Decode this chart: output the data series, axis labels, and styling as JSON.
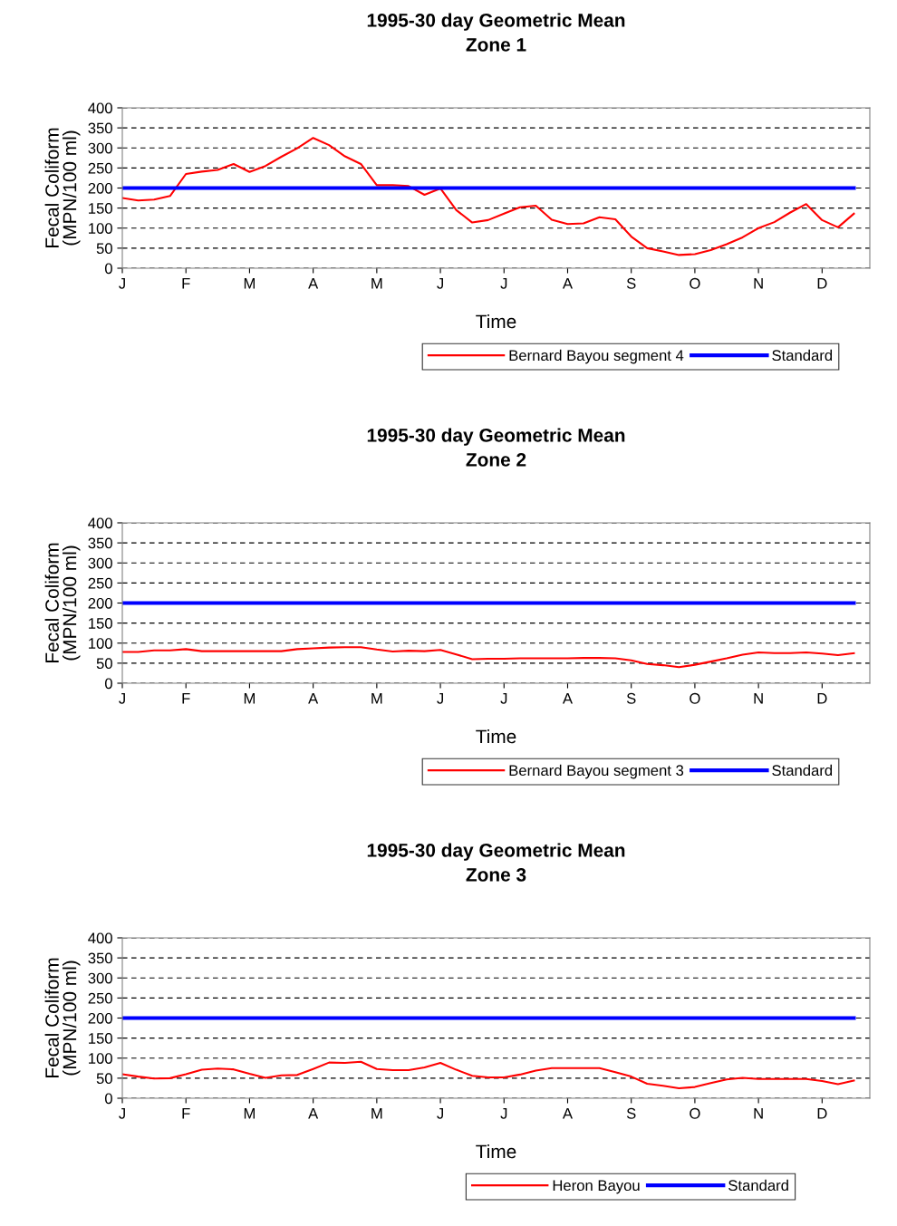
{
  "chart_data": [
    {
      "type": "line",
      "title": "1995-30 day Geometric Mean\nZone 1",
      "xlabel": "Time",
      "ylabel": "Fecal Coliform\n(MPN/100 ml)",
      "categories": [
        "J",
        null,
        null,
        null,
        "F",
        null,
        null,
        null,
        "M",
        null,
        null,
        null,
        "A",
        null,
        null,
        null,
        "M",
        null,
        null,
        null,
        "J",
        null,
        null,
        null,
        "J",
        null,
        null,
        null,
        "A",
        null,
        null,
        null,
        "S",
        null,
        null,
        null,
        "O",
        null,
        null,
        null,
        "N",
        null,
        null,
        null,
        "D",
        null,
        null
      ],
      "ylim": [
        0,
        400
      ],
      "yticks": [
        0,
        50,
        100,
        150,
        200,
        250,
        300,
        350,
        400
      ],
      "grid": "y",
      "legend": "bottom",
      "marker": "none",
      "series": [
        {
          "name": "Bernard Bayou segment 4",
          "color": "#ff0000",
          "values": [
            175,
            169,
            171,
            180,
            235,
            241,
            245,
            260,
            240,
            255,
            278,
            299,
            325,
            307,
            279,
            260,
            207,
            207,
            205,
            183,
            199,
            145,
            114,
            120,
            136,
            152,
            156,
            121,
            110,
            112,
            127,
            122,
            79,
            50,
            42,
            33,
            35,
            45,
            60,
            77,
            100,
            115,
            139,
            160,
            120,
            102,
            136
          ]
        },
        {
          "name": "Standard",
          "color": "#0000ff",
          "values": [
            200,
            200,
            200,
            200,
            200,
            200,
            200,
            200,
            200,
            200,
            200,
            200,
            200,
            200,
            200,
            200,
            200,
            200,
            200,
            200,
            200,
            200,
            200,
            200,
            200,
            200,
            200,
            200,
            200,
            200,
            200,
            200,
            200,
            200,
            200,
            200,
            200,
            200,
            200,
            200,
            200,
            200,
            200,
            200,
            200,
            200,
            200
          ]
        }
      ]
    },
    {
      "type": "line",
      "title": "1995-30 day Geometric Mean\nZone 2",
      "xlabel": "Time",
      "ylabel": "Fecal Coliform\n(MPN/100 ml)",
      "categories": [
        "J",
        null,
        null,
        null,
        "F",
        null,
        null,
        null,
        "M",
        null,
        null,
        null,
        "A",
        null,
        null,
        null,
        "M",
        null,
        null,
        null,
        "J",
        null,
        null,
        null,
        "J",
        null,
        null,
        null,
        "A",
        null,
        null,
        null,
        "S",
        null,
        null,
        null,
        "O",
        null,
        null,
        null,
        "N",
        null,
        null,
        null,
        "D",
        null,
        null
      ],
      "ylim": [
        0,
        400
      ],
      "yticks": [
        0,
        50,
        100,
        150,
        200,
        250,
        300,
        350,
        400
      ],
      "grid": "y",
      "legend": "bottom",
      "marker": "none",
      "series": [
        {
          "name": "Bernard Bayou segment 3",
          "color": "#ff0000",
          "values": [
            78,
            78,
            82,
            82,
            85,
            80,
            80,
            80,
            80,
            80,
            80,
            85,
            87,
            89,
            90,
            90,
            84,
            79,
            81,
            80,
            83,
            72,
            60,
            61,
            61,
            62,
            62,
            62,
            62,
            63,
            63,
            62,
            57,
            48,
            45,
            40,
            46,
            54,
            62,
            71,
            77,
            75,
            75,
            77,
            74,
            70,
            75
          ]
        },
        {
          "name": "Standard",
          "color": "#0000ff",
          "values": [
            200,
            200,
            200,
            200,
            200,
            200,
            200,
            200,
            200,
            200,
            200,
            200,
            200,
            200,
            200,
            200,
            200,
            200,
            200,
            200,
            200,
            200,
            200,
            200,
            200,
            200,
            200,
            200,
            200,
            200,
            200,
            200,
            200,
            200,
            200,
            200,
            200,
            200,
            200,
            200,
            200,
            200,
            200,
            200,
            200,
            200,
            200
          ]
        }
      ]
    },
    {
      "type": "line",
      "title": "1995-30 day Geometric Mean\nZone 3",
      "xlabel": "Time",
      "ylabel": "Fecal Coliform\n(MPN/100 ml)",
      "categories": [
        "J",
        null,
        null,
        null,
        "F",
        null,
        null,
        null,
        "M",
        null,
        null,
        null,
        "A",
        null,
        null,
        null,
        "M",
        null,
        null,
        null,
        "J",
        null,
        null,
        null,
        "J",
        null,
        null,
        null,
        "A",
        null,
        null,
        null,
        "S",
        null,
        null,
        null,
        "O",
        null,
        null,
        null,
        "N",
        null,
        null,
        null,
        "D",
        null,
        null
      ],
      "ylim": [
        0,
        400
      ],
      "yticks": [
        0,
        50,
        100,
        150,
        200,
        250,
        300,
        350,
        400
      ],
      "grid": "y",
      "legend": "bottom",
      "marker": "none",
      "series": [
        {
          "name": "Heron Bayou",
          "color": "#ff0000",
          "values": [
            60,
            54,
            49,
            50,
            60,
            71,
            74,
            72,
            61,
            51,
            57,
            58,
            73,
            89,
            88,
            91,
            73,
            70,
            70,
            77,
            88,
            71,
            56,
            52,
            52,
            59,
            69,
            75,
            75,
            75,
            75,
            65,
            54,
            36,
            31,
            25,
            28,
            38,
            47,
            51,
            48,
            48,
            48,
            48,
            43,
            35,
            44
          ]
        },
        {
          "name": "Standard",
          "color": "#0000ff",
          "values": [
            200,
            200,
            200,
            200,
            200,
            200,
            200,
            200,
            200,
            200,
            200,
            200,
            200,
            200,
            200,
            200,
            200,
            200,
            200,
            200,
            200,
            200,
            200,
            200,
            200,
            200,
            200,
            200,
            200,
            200,
            200,
            200,
            200,
            200,
            200,
            200,
            200,
            200,
            200,
            200,
            200,
            200,
            200,
            200,
            200,
            200,
            200
          ]
        }
      ]
    }
  ]
}
